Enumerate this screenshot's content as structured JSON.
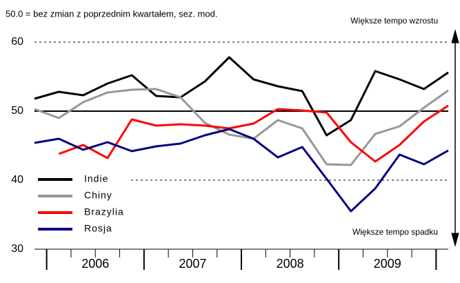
{
  "chart_data": {
    "type": "line",
    "subtitle": "50.0 = bez zmian z poprzednim kwartałem, sez. mod.",
    "annotations": [
      "Większe tempo wzrostu",
      "Większe tempo spadku"
    ],
    "categories": [
      null,
      null,
      null,
      null,
      null,
      null,
      null,
      null,
      null,
      null,
      null,
      null,
      null,
      null,
      null,
      null,
      null,
      null
    ],
    "year_labels": [
      "2006",
      "2007",
      "2008",
      "2009"
    ],
    "series": [
      {
        "name": "Indie",
        "color": "#000000",
        "values": [
          51.8,
          52.8,
          52.3,
          54.0,
          55.2,
          52.2,
          52.0,
          54.3,
          57.8,
          54.6,
          53.6,
          52.9,
          46.5,
          48.7,
          55.8,
          54.6,
          53.2,
          55.6
        ]
      },
      {
        "name": "Chiny",
        "color": "#969696",
        "values": [
          50.3,
          49.0,
          51.3,
          52.7,
          53.1,
          53.2,
          52.0,
          48.3,
          46.6,
          46.0,
          48.7,
          47.5,
          42.3,
          42.2,
          46.7,
          47.8,
          50.5,
          53.0
        ]
      },
      {
        "name": "Brazylia",
        "color": "#ff0000",
        "values": [
          null,
          43.8,
          45.1,
          43.2,
          48.8,
          47.9,
          48.1,
          47.9,
          47.5,
          48.2,
          50.3,
          50.1,
          49.8,
          45.5,
          42.7,
          45.1,
          48.5,
          50.8
        ]
      },
      {
        "name": "Rosja",
        "color": "#000080",
        "values": [
          45.4,
          46.0,
          44.4,
          45.5,
          44.2,
          44.9,
          45.3,
          46.5,
          47.4,
          46.0,
          43.3,
          44.8,
          40.2,
          35.5,
          38.8,
          43.7,
          42.3,
          44.3
        ]
      }
    ],
    "ylim": [
      30,
      60
    ],
    "yticks": [
      30,
      40,
      50,
      60
    ],
    "hline": 50,
    "grid": true
  }
}
